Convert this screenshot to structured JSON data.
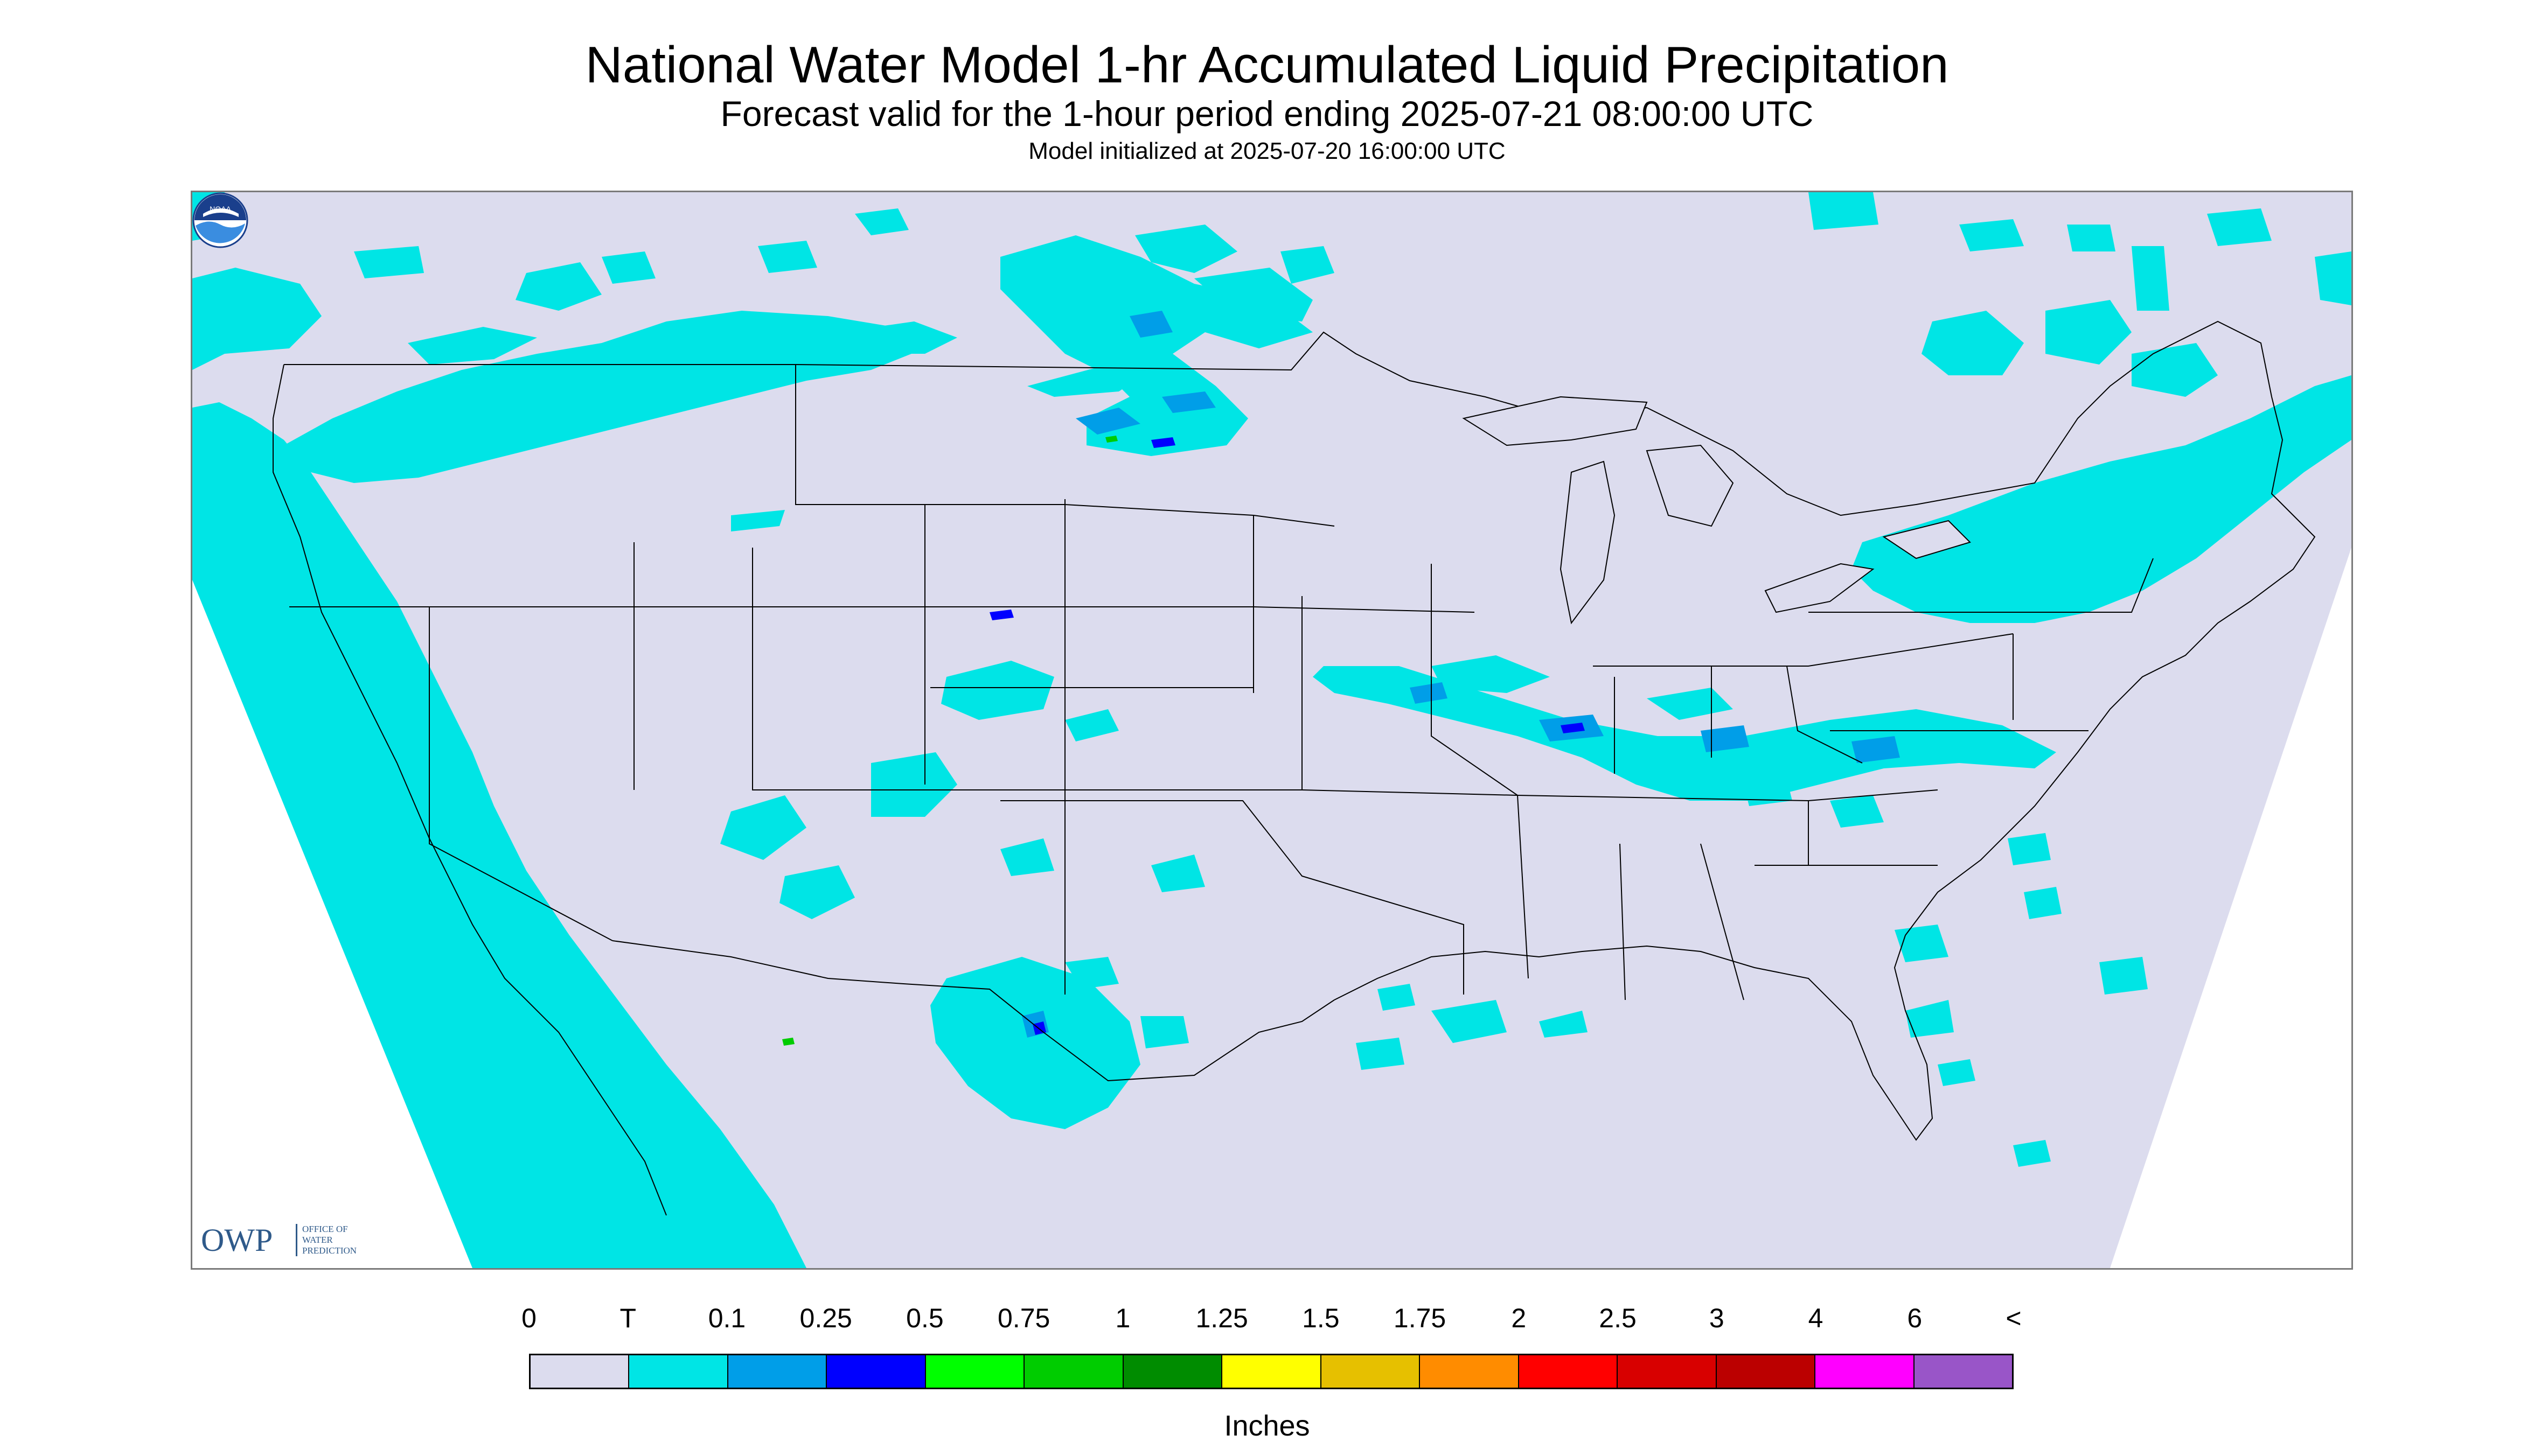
{
  "title": "National Water Model 1-hr Accumulated Liquid Precipitation",
  "subtitle": "Forecast valid for the 1-hour period ending 2025-07-21 08:00:00 UTC",
  "init_line": "Model initialized at 2025-07-20 16:00:00 UTC",
  "logos": {
    "owp_big": "OWP",
    "owp_sub": [
      "OFFICE OF",
      "WATER",
      "PREDICTION"
    ],
    "noaa": "NOAA"
  },
  "legend": {
    "labels": [
      "0",
      "T",
      "0.1",
      "0.25",
      "0.5",
      "0.75",
      "1",
      "1.25",
      "1.5",
      "1.75",
      "2",
      "2.5",
      "3",
      "4",
      "6",
      "<"
    ],
    "colors": [
      "#dcdcee",
      "#00e5e5",
      "#009ee8",
      "#0000ff",
      "#00ff00",
      "#00cc00",
      "#008c00",
      "#ffff00",
      "#e6c000",
      "#ff8c00",
      "#ff0000",
      "#d80000",
      "#bb0000",
      "#ff00ff",
      "#9955c8"
    ],
    "units": "Inches"
  },
  "colors": {
    "background_no_precip": "#dcdcee",
    "trace": "#00e5e5",
    "boundaries": "#000000",
    "frame": "#7a7a7a"
  }
}
